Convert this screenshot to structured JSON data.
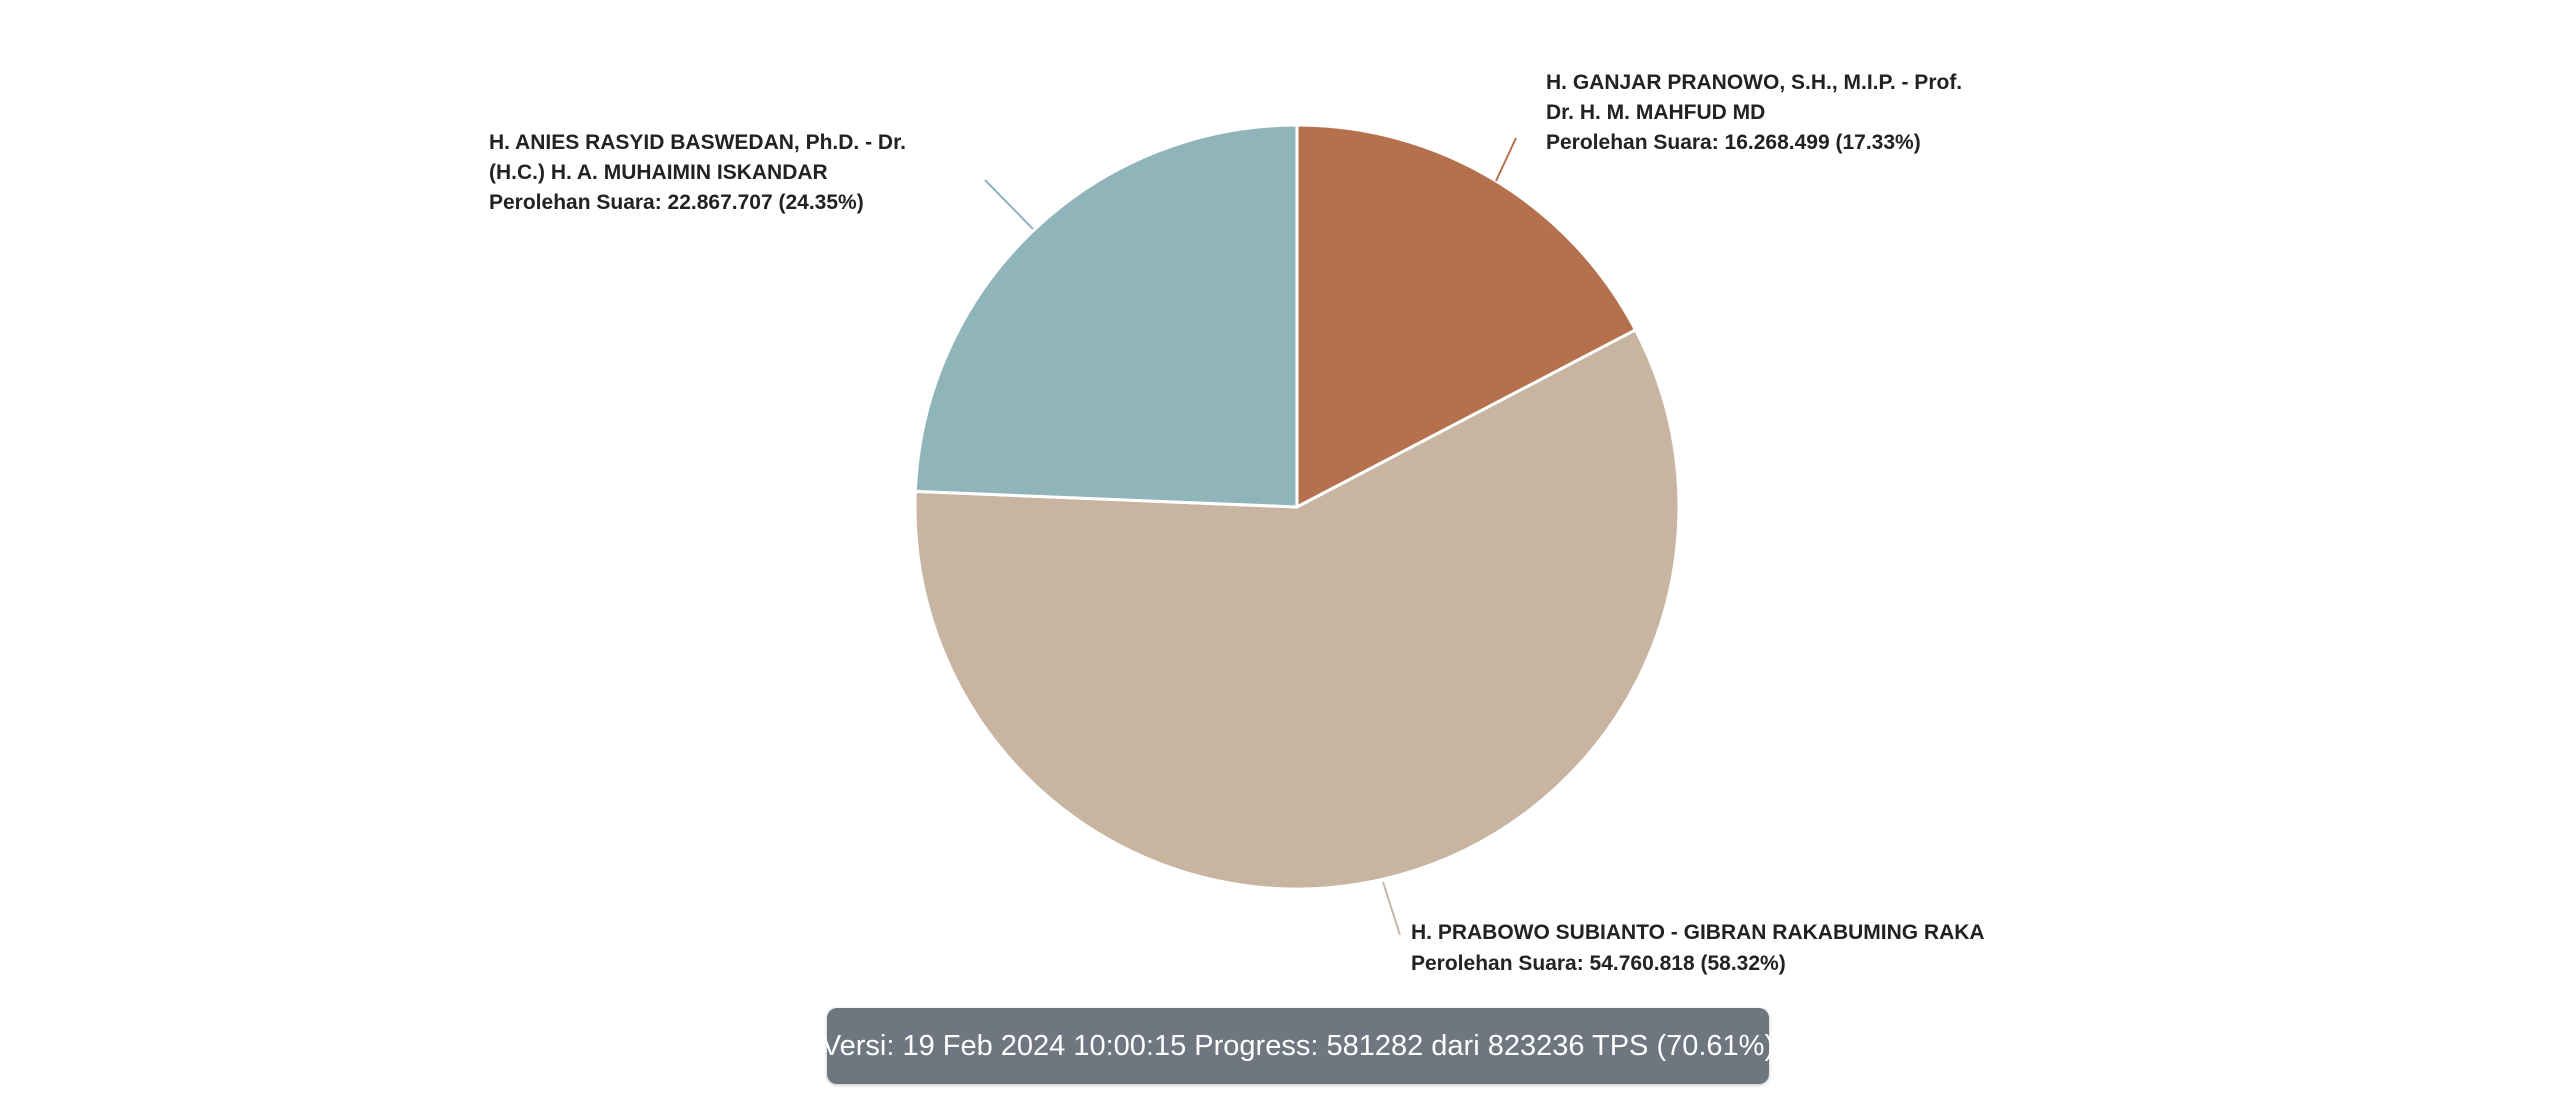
{
  "chart_data": {
    "type": "pie",
    "start_angle_deg": 0,
    "direction": "clockwise",
    "slices": [
      {
        "name_lines": [
          "H. GANJAR PRANOWO, S.H., M.I.P. - Prof.",
          "Dr. H. M. MAHFUD MD"
        ],
        "value_text": "Perolehan Suara: 16.268.499 (17.33%)",
        "votes": 16268499,
        "percent": 17.33,
        "color": "#b5714e"
      },
      {
        "name_lines": [
          "H. PRABOWO SUBIANTO - GIBRAN RAKABUMING RAKA"
        ],
        "value_text": "Perolehan Suara: 54.760.818 (58.32%)",
        "votes": 54760818,
        "percent": 58.32,
        "color": "#c7b5a2"
      },
      {
        "name_lines": [
          "H. ANIES RASYID BASWEDAN, Ph.D. - Dr.",
          "(H.C.) H. A. MUHAIMIN ISKANDAR"
        ],
        "value_text": "Perolehan Suara: 22.867.707 (24.35%)",
        "votes": 22867707,
        "percent": 24.35,
        "color": "#8fb5bb"
      }
    ]
  },
  "version_bar": {
    "text": "Versi: 19 Feb 2024 10:00:15 Progress: 581282 dari 823236 TPS (70.61%)"
  }
}
